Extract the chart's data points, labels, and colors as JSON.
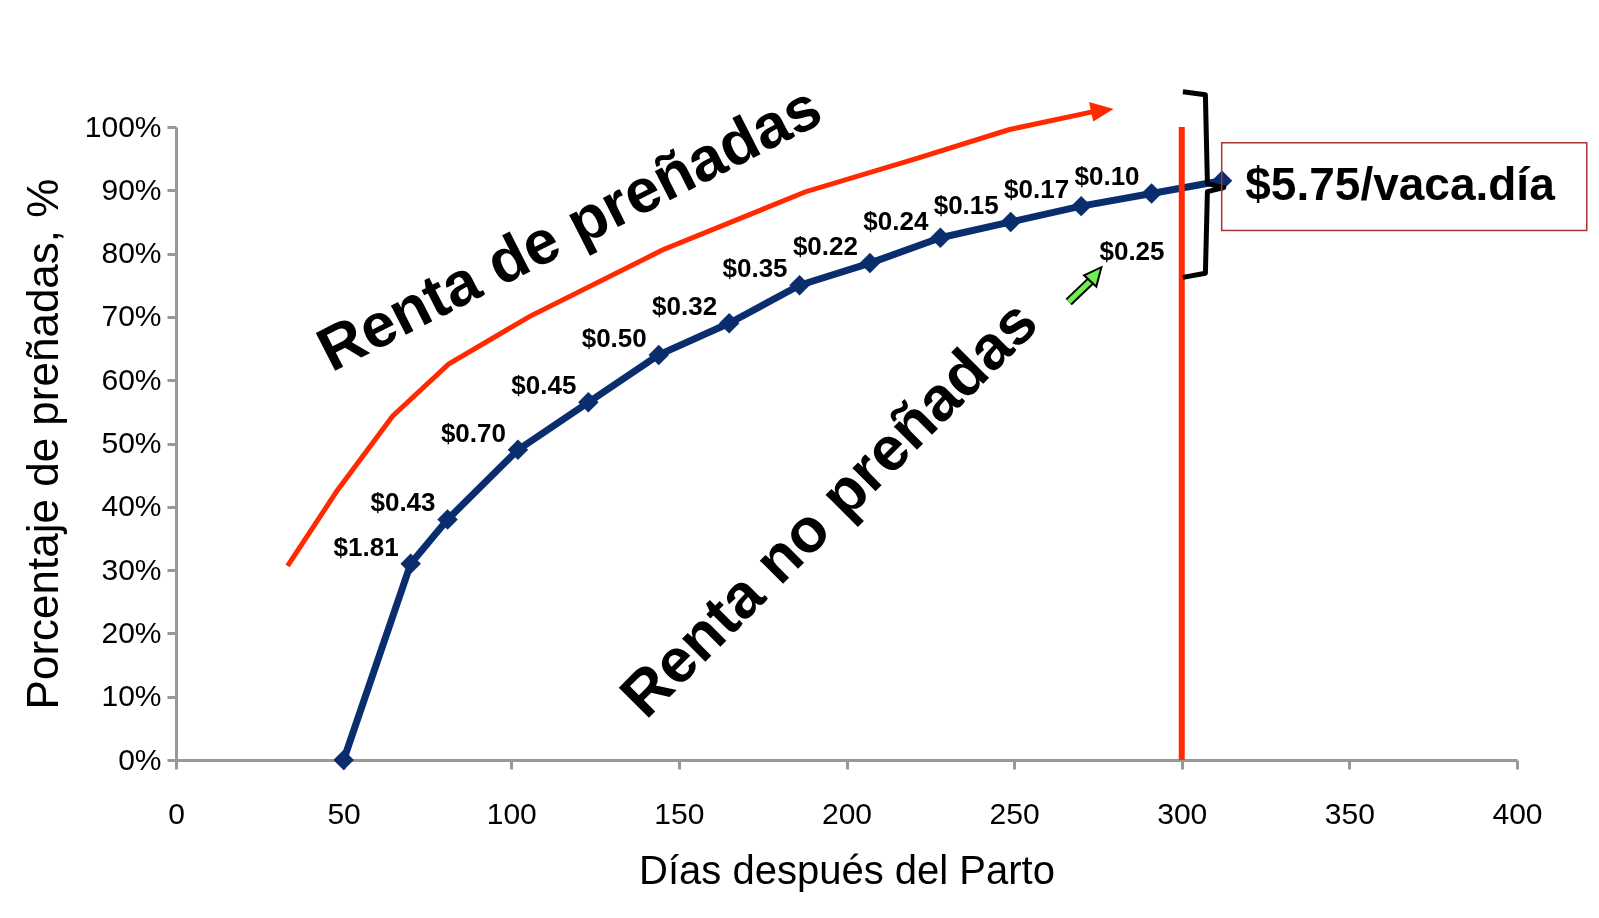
{
  "chart_data": {
    "type": "line",
    "xlabel": "Días después del Parto",
    "ylabel": "Porcentaje de preñadas, %",
    "x": [
      50,
      70,
      81,
      102,
      123,
      144,
      165,
      186,
      207,
      228,
      249,
      270,
      291,
      312
    ],
    "series": [
      {
        "color": "#0a2d6e",
        "values": [
          0,
          31,
          38,
          49,
          56.5,
          64,
          69,
          75,
          78.5,
          82.5,
          85,
          87.5,
          89.5,
          91.5
        ]
      }
    ],
    "marker": "diamond",
    "xlim": [
      0,
      400
    ],
    "xticks": [
      0,
      50,
      100,
      150,
      200,
      250,
      300,
      350,
      400
    ],
    "ylim": [
      0,
      100
    ],
    "yticks": [
      {
        "value": 0,
        "label": "0%"
      },
      {
        "value": 10,
        "label": "10%"
      },
      {
        "value": 20,
        "label": "20%"
      },
      {
        "value": 30,
        "label": "30%"
      },
      {
        "value": 40,
        "label": "40%"
      },
      {
        "value": 50,
        "label": "50%"
      },
      {
        "value": 60,
        "label": "60%"
      },
      {
        "value": 70,
        "label": "70%"
      },
      {
        "value": 80,
        "label": "80%"
      },
      {
        "value": 90,
        "label": "90%"
      },
      {
        "value": 100,
        "label": "100%"
      }
    ],
    "ref_lines": [
      {
        "axis": "x",
        "value": 300,
        "color": "#ff2a00"
      }
    ],
    "annotations": [
      "Renta de preñadas",
      "Renta no preñadas",
      "$5.75/vaca.día",
      "$0.25",
      {
        "text": "$1.81",
        "x": 70,
        "y": 31
      },
      {
        "text": "$0.43",
        "x": 81,
        "y": 38
      },
      {
        "text": "$0.70",
        "x": 102,
        "y": 49
      },
      {
        "text": "$0.45",
        "x": 123,
        "y": 56.5
      },
      {
        "text": "$0.50",
        "x": 144,
        "y": 64
      },
      {
        "text": "$0.32",
        "x": 165,
        "y": 69
      },
      {
        "text": "$0.35",
        "x": 186,
        "y": 75
      },
      {
        "text": "$0.22",
        "x": 207,
        "y": 78.5
      },
      {
        "text": "$0.24",
        "x": 228,
        "y": 82.5
      },
      {
        "text": "$0.15",
        "x": 249,
        "y": 85
      },
      {
        "text": "$0.17",
        "x": 270,
        "y": 87.5
      },
      {
        "text": "$0.10",
        "x": 291,
        "y": 89.5
      }
    ]
  }
}
